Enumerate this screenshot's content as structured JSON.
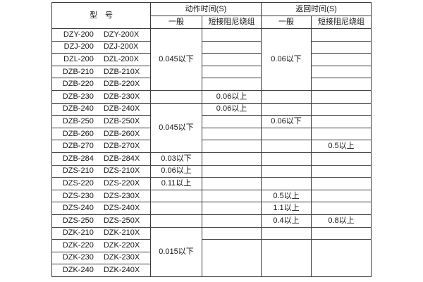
{
  "colors": {
    "background": "#ffffff",
    "border": "#3d3d3d",
    "text": "#141414"
  },
  "table": {
    "header": {
      "model": "型　号",
      "action_time": "动作时间(S)",
      "return_time": "返回时间(S)",
      "action_general": "一般",
      "action_damping": "短接阻尼绕组",
      "return_general": "一般",
      "return_damping": "短接阻尼绕组"
    },
    "rows": [
      {
        "model": [
          "DZY-200",
          "DZY-200X"
        ]
      },
      {
        "model": [
          "DZJ-200",
          "DZJ-200X"
        ]
      },
      {
        "model": [
          "DZL-200",
          "DZL-200X"
        ]
      },
      {
        "model": [
          "DZB-210",
          "DZB-210X"
        ]
      },
      {
        "model": [
          "DZB-220",
          "DZB-220X"
        ]
      },
      {
        "model": [
          "DZB-230",
          "DZB-230X"
        ]
      },
      {
        "model": [
          "DZB-240",
          "DZB-240X"
        ]
      },
      {
        "model": [
          "DZB-250",
          "DZB-250X"
        ]
      },
      {
        "model": [
          "DZB-260",
          "DZB-260X"
        ]
      },
      {
        "model": [
          "DZB-270",
          "DZB-270X"
        ]
      },
      {
        "model": [
          "DZB-284",
          "DZB-284X"
        ]
      },
      {
        "model": [
          "DZS-210",
          "DZS-210X"
        ]
      },
      {
        "model": [
          "DZS-220",
          "DZS-220X"
        ]
      },
      {
        "model": [
          "DZS-230",
          "DZS-230X"
        ]
      },
      {
        "model": [
          "DZS-240",
          "DZS-240X"
        ]
      },
      {
        "model": [
          "DZS-250",
          "DZS-250X"
        ]
      },
      {
        "model": [
          "DZK-210",
          "DZK-210X"
        ]
      },
      {
        "model": [
          "DZK-220",
          "DZK-220X"
        ]
      },
      {
        "model": [
          "DZK-230",
          "DZK-230X"
        ]
      },
      {
        "model": [
          "DZK-240",
          "DZK-240X"
        ]
      }
    ],
    "columns": [
      {
        "key": "action-general",
        "cells": [
          {
            "span": 5,
            "text": "0.045以下"
          },
          {
            "span": 1,
            "text": ""
          },
          {
            "span": 4,
            "text": "0.045以下"
          },
          {
            "span": 1,
            "text": "0.03以下"
          },
          {
            "span": 1,
            "text": "0.06以上"
          },
          {
            "span": 1,
            "text": "0.11以上"
          },
          {
            "span": 1,
            "text": ""
          },
          {
            "span": 1,
            "text": ""
          },
          {
            "span": 1,
            "text": ""
          },
          {
            "span": 4,
            "text": "0.015以下"
          }
        ]
      },
      {
        "key": "action-damping",
        "cells": [
          {
            "span": 1,
            "text": ""
          },
          {
            "span": 1,
            "text": ""
          },
          {
            "span": 1,
            "text": ""
          },
          {
            "span": 1,
            "text": ""
          },
          {
            "span": 1,
            "text": ""
          },
          {
            "span": 1,
            "text": "0.06以上"
          },
          {
            "span": 1,
            "text": "0.06以上"
          },
          {
            "span": 1,
            "text": ""
          },
          {
            "span": 1,
            "text": ""
          },
          {
            "span": 1,
            "text": ""
          },
          {
            "span": 1,
            "text": ""
          },
          {
            "span": 1,
            "text": ""
          },
          {
            "span": 1,
            "text": ""
          },
          {
            "span": 1,
            "text": ""
          },
          {
            "span": 1,
            "text": ""
          },
          {
            "span": 1,
            "text": ""
          },
          {
            "span": 1,
            "text": ""
          },
          {
            "span": 3,
            "text": ""
          }
        ]
      },
      {
        "key": "return-general",
        "cells": [
          {
            "span": 5,
            "text": "0.06以下"
          },
          {
            "span": 1,
            "text": ""
          },
          {
            "span": 1,
            "text": ""
          },
          {
            "span": 1,
            "text": "0.06以下"
          },
          {
            "span": 1,
            "text": ""
          },
          {
            "span": 1,
            "text": ""
          },
          {
            "span": 1,
            "text": ""
          },
          {
            "span": 1,
            "text": ""
          },
          {
            "span": 1,
            "text": ""
          },
          {
            "span": 1,
            "text": "0.5以上"
          },
          {
            "span": 1,
            "text": "1.1以上"
          },
          {
            "span": 1,
            "text": "0.4以上"
          },
          {
            "span": 1,
            "text": ""
          },
          {
            "span": 3,
            "text": ""
          }
        ]
      },
      {
        "key": "return-damping",
        "cells": [
          {
            "span": 1,
            "text": ""
          },
          {
            "span": 1,
            "text": ""
          },
          {
            "span": 1,
            "text": ""
          },
          {
            "span": 1,
            "text": ""
          },
          {
            "span": 1,
            "text": ""
          },
          {
            "span": 1,
            "text": ""
          },
          {
            "span": 1,
            "text": ""
          },
          {
            "span": 1,
            "text": ""
          },
          {
            "span": 1,
            "text": ""
          },
          {
            "span": 1,
            "text": "0.5以上"
          },
          {
            "span": 1,
            "text": ""
          },
          {
            "span": 1,
            "text": ""
          },
          {
            "span": 1,
            "text": ""
          },
          {
            "span": 1,
            "text": ""
          },
          {
            "span": 1,
            "text": ""
          },
          {
            "span": 1,
            "text": "0.8以上"
          },
          {
            "span": 1,
            "text": ""
          },
          {
            "span": 3,
            "text": ""
          }
        ]
      }
    ]
  }
}
